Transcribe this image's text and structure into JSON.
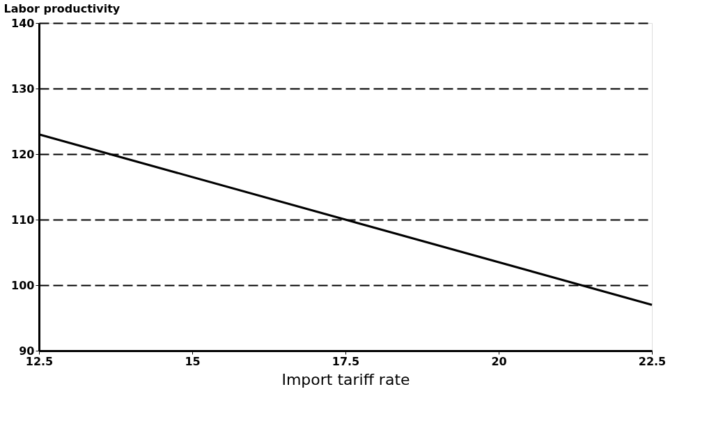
{
  "chart_data": {
    "type": "line",
    "ylabel": "Labor productivity",
    "xlabel": "Import tariff rate",
    "x": [
      12.5,
      17.5,
      22.5
    ],
    "series": [
      {
        "color": "#000000",
        "values": [
          123,
          110,
          97
        ]
      }
    ],
    "xlim": [
      12.5,
      22.5
    ],
    "xticks": [
      12.5,
      15,
      17.5,
      20,
      22.5
    ],
    "ylim": [
      90,
      140
    ],
    "yticks": [
      90,
      100,
      110,
      120,
      130,
      140
    ],
    "grid": "y",
    "marker": "none",
    "line_style": "solid",
    "legend": false
  }
}
